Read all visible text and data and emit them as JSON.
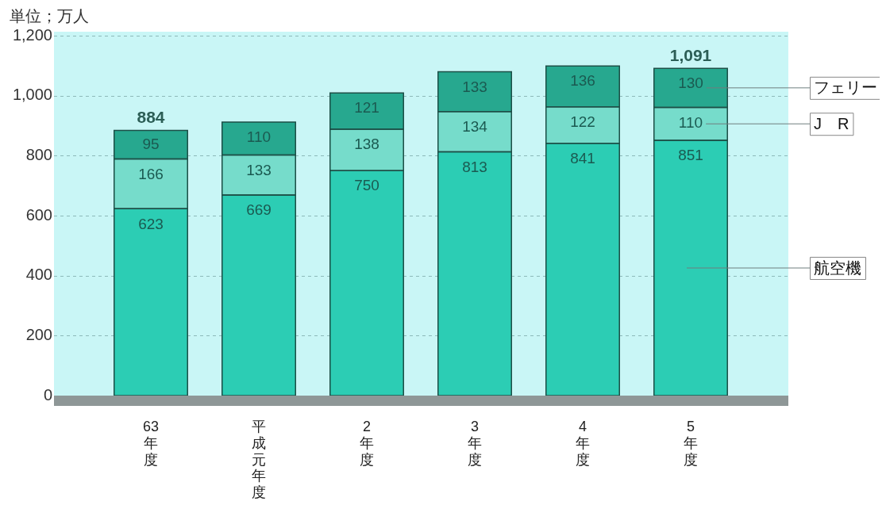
{
  "chart_data": {
    "type": "bar",
    "stacked": true,
    "ylabel": "単位；万人",
    "categories": [
      "63年度",
      "平成元年度",
      "2年度",
      "3年度",
      "4年度",
      "5年度"
    ],
    "series": [
      {
        "name": "航空機",
        "color": "#2ccdb4",
        "values": [
          623,
          669,
          750,
          813,
          841,
          851
        ]
      },
      {
        "name": "J　R",
        "color": "#76dccb",
        "values": [
          166,
          133,
          138,
          134,
          122,
          110
        ]
      },
      {
        "name": "フェリー",
        "color": "#27a88f",
        "values": [
          95,
          110,
          121,
          133,
          136,
          130
        ]
      }
    ],
    "ylim": [
      0,
      1200
    ],
    "yticks": [
      0,
      200,
      400,
      600,
      800,
      {
        "value": 1000,
        "label": "1,000"
      },
      {
        "value": 1200,
        "label": "1,200"
      }
    ],
    "grid": "y",
    "legend": "right",
    "data_labels": true,
    "totals": [
      "884",
      null,
      null,
      null,
      null,
      "1,091"
    ]
  }
}
